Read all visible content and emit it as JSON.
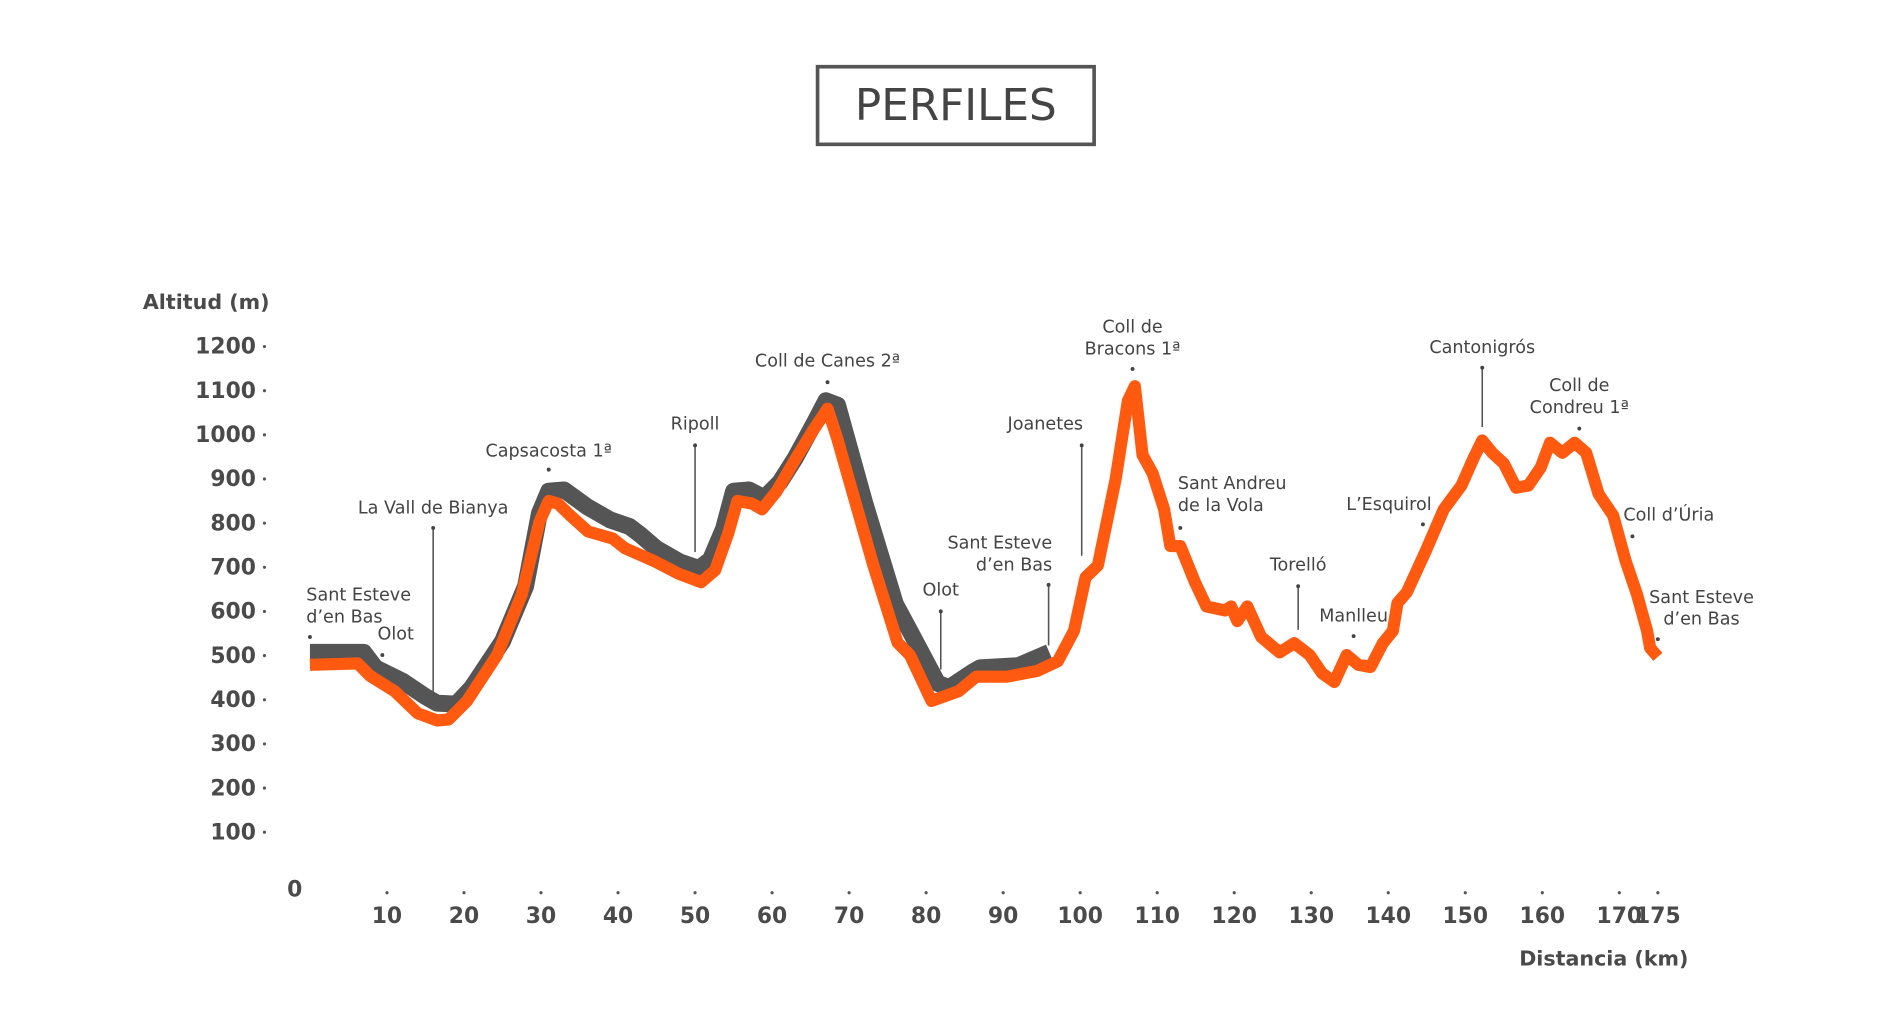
{
  "chart_data": {
    "type": "line",
    "title": "PERFILES",
    "y_label": "Altitud (m)",
    "x_label": "Distancia (km)",
    "origin": 0,
    "xlim": [
      0,
      175
    ],
    "ylim": [
      0,
      1250
    ],
    "xticks": [
      10,
      20,
      30,
      40,
      50,
      60,
      70,
      80,
      90,
      100,
      110,
      120,
      130,
      140,
      150,
      160,
      170,
      175
    ],
    "yticks": [
      100,
      200,
      300,
      400,
      500,
      600,
      700,
      800,
      900,
      1000,
      1100,
      1200
    ],
    "series": [
      {
        "color": "#555555",
        "x": [
          0,
          7,
          8.5,
          12,
          15,
          16.5,
          19,
          21,
          25,
          28,
          29.8,
          31,
          33,
          36,
          39,
          41.5,
          43,
          45,
          48,
          50.5,
          52,
          53.7,
          55,
          57,
          59,
          61,
          63,
          65.5,
          67,
          68.5,
          72,
          76,
          78,
          81.5,
          83,
          86,
          87,
          92,
          96
        ],
        "values": [
          510,
          510,
          475,
          445,
          410,
          395,
          393,
          430,
          535,
          660,
          825,
          875,
          878,
          840,
          810,
          795,
          775,
          745,
          715,
          700,
          720,
          790,
          875,
          878,
          860,
          895,
          950,
          1030,
          1080,
          1070,
          850,
          620,
          555,
          440,
          430,
          465,
          475,
          480,
          510
        ]
      },
      {
        "color": "#ff5a0f",
        "x": [
          0,
          6.2,
          7.8,
          11,
          14,
          16.5,
          18,
          20.4,
          24.3,
          27.5,
          29.8,
          31,
          32.2,
          33.8,
          36.1,
          39.3,
          40.9,
          44.8,
          47.9,
          50.8,
          52.6,
          54.3,
          55.5,
          57.4,
          58.7,
          60.6,
          62.9,
          65.3,
          67.2,
          68.4,
          73.1,
          76.3,
          77.9,
          80.7,
          84.2,
          86.5,
          90.5,
          94.4,
          97.1,
          99.2,
          100.7,
          102.3,
          104.6,
          106.2,
          107.1,
          108.1,
          109.4,
          110.9,
          111.7,
          113,
          114.9,
          116.4,
          118.8,
          119.6,
          120.4,
          121.7,
          123.5,
          125.9,
          127.8,
          129.8,
          131.4,
          133,
          134.6,
          136.1,
          137.7,
          139.3,
          140.6,
          141.2,
          142.4,
          144.8,
          147.2,
          149.5,
          151.1,
          152.2,
          153.5,
          155,
          156.6,
          158.2,
          159.8,
          161,
          162.6,
          164.2,
          165.7,
          167.3,
          169.2,
          170.8,
          172.3,
          173.6,
          174,
          175
        ],
        "values": [
          482,
          485,
          457,
          422,
          372,
          356,
          358,
          400,
          504,
          641,
          806,
          853,
          847,
          820,
          784,
          768,
          746,
          716,
          688,
          669,
          696,
          779,
          853,
          847,
          834,
          875,
          944,
          1012,
          1062,
          998,
          710,
          532,
          504,
          400,
          422,
          455,
          455,
          468,
          490,
          559,
          680,
          707,
          902,
          1080,
          1113,
          957,
          916,
          834,
          751,
          751,
          669,
          614,
          605,
          614,
          581,
          614,
          545,
          510,
          531,
          504,
          463,
          443,
          504,
          482,
          477,
          531,
          559,
          622,
          646,
          737,
          834,
          888,
          951,
          990,
          962,
          938,
          883,
          888,
          929,
          985,
          962,
          985,
          962,
          869,
          820,
          718,
          641,
          559,
          520,
          500
        ]
      }
    ],
    "annotations": [
      {
        "lines": [
          "Sant Esteve",
          "d’en Bas"
        ],
        "x": 0,
        "y": 545
      },
      {
        "lines": [
          "Olot"
        ],
        "x": 9.4,
        "y": 504
      },
      {
        "lines": [
          "La Vall de Bianya"
        ],
        "x": 16,
        "y": 792
      },
      {
        "lines": [
          "Capsacosta 1ª"
        ],
        "x": 31,
        "y": 924
      },
      {
        "lines": [
          "Ripoll"
        ],
        "x": 50,
        "y": 979
      },
      {
        "lines": [
          "Coll de Canes 2ª"
        ],
        "x": 67.2,
        "y": 1122
      },
      {
        "lines": [
          "Olot"
        ],
        "x": 81.9,
        "y": 603
      },
      {
        "lines": [
          "Sant Esteve",
          "d’en Bas"
        ],
        "x": 95.9,
        "y": 663
      },
      {
        "lines": [
          "Joanetes"
        ],
        "x": 100.2,
        "y": 979
      },
      {
        "lines": [
          "Coll de",
          "Bracons 1ª"
        ],
        "x": 106.8,
        "y": 1152
      },
      {
        "lines": [
          "Sant Andreu",
          "de la Vola"
        ],
        "x": 113,
        "y": 792
      },
      {
        "lines": [
          "Torelló"
        ],
        "x": 128.3,
        "y": 660
      },
      {
        "lines": [
          "Manlleu"
        ],
        "x": 135.5,
        "y": 547
      },
      {
        "lines": [
          "L’Esquirol"
        ],
        "x": 144.5,
        "y": 800
      },
      {
        "lines": [
          "Cantonigrós"
        ],
        "x": 152.2,
        "y": 1155
      },
      {
        "lines": [
          "Coll de",
          "Condreu 1ª"
        ],
        "x": 164.8,
        "y": 1017
      },
      {
        "lines": [
          "Coll d’Úria"
        ],
        "x": 171.7,
        "y": 773
      },
      {
        "lines": [
          "Sant Esteve",
          "d’en Bas"
        ],
        "x": 175,
        "y": 540
      }
    ]
  }
}
